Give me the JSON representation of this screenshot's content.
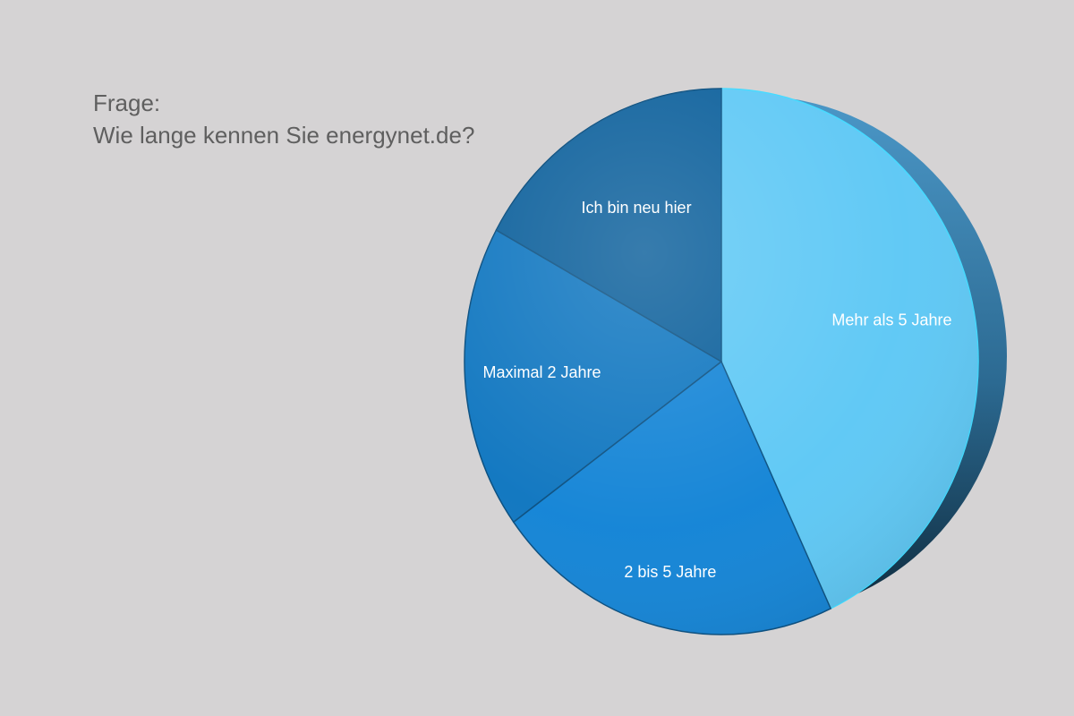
{
  "question": {
    "label": "Frage:",
    "text": "Wie lange kennen Sie energynet.de?"
  },
  "chart_data": {
    "type": "pie",
    "title": "",
    "categories": [
      "Mehr als 5 Jahre",
      "2 bis 5 Jahre",
      "Maximal 2 Jahre",
      "Ich bin neu hier"
    ],
    "values": [
      43,
      22,
      18,
      17
    ],
    "unit": "%",
    "colors": [
      "#5ec8f5",
      "#1384d6",
      "#0f76c0",
      "#0b5f9b"
    ],
    "side_color": "#2a6d98",
    "legend": "none",
    "labels_on_slices": true,
    "style": "3d-tilted"
  }
}
